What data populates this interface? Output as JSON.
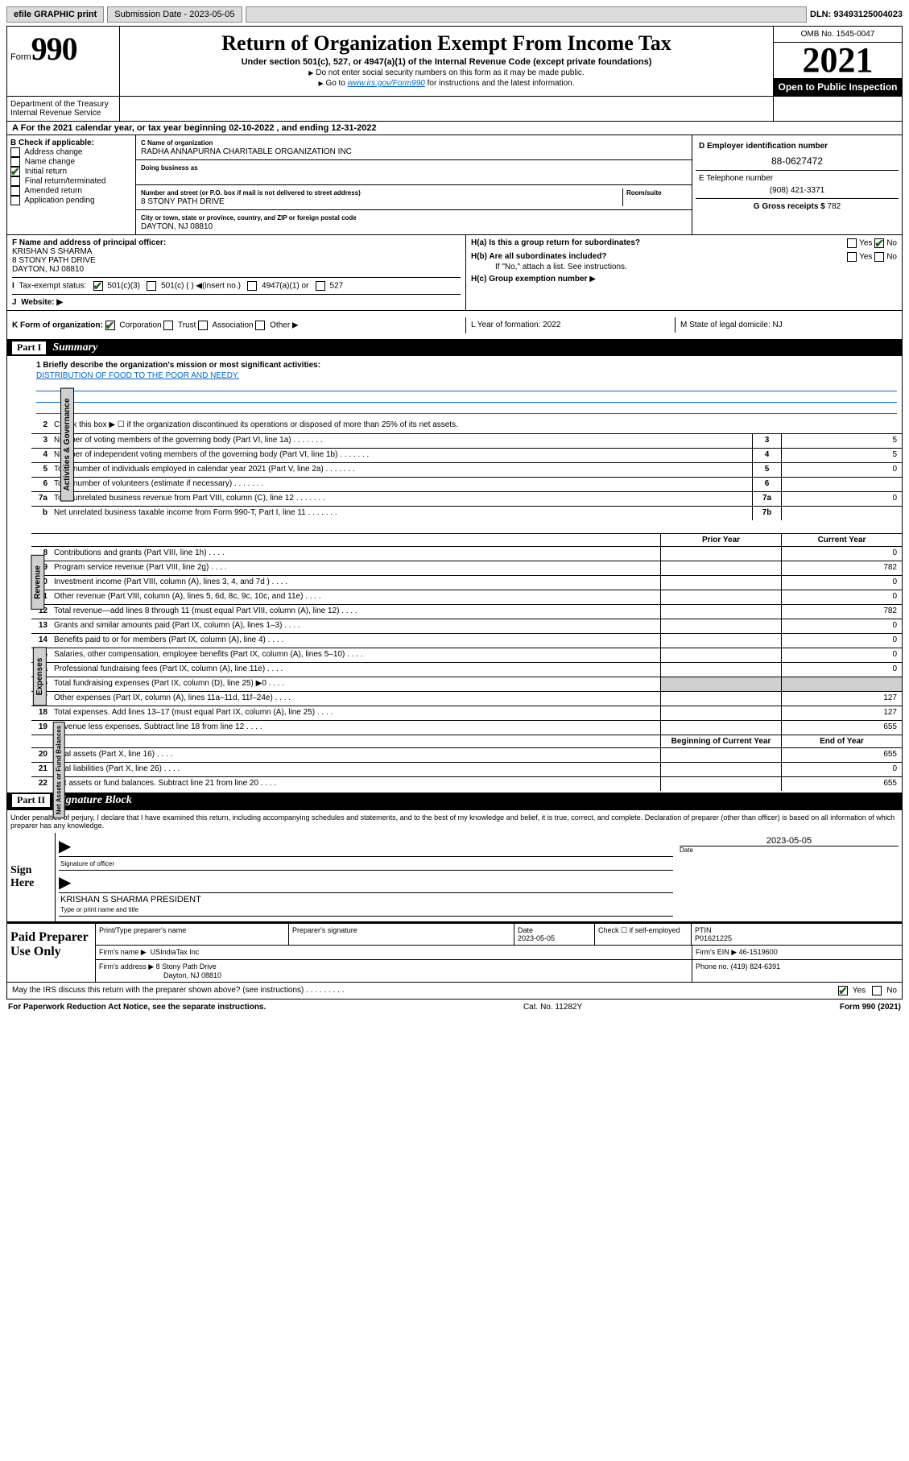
{
  "top_bar": {
    "efile_label": "efile GRAPHIC print",
    "submission_label": "Submission Date - 2023-05-05",
    "dln": "DLN: 93493125004023"
  },
  "header": {
    "form_prefix": "Form",
    "form_number": "990",
    "title": "Return of Organization Exempt From Income Tax",
    "subtitle": "Under section 501(c), 527, or 4947(a)(1) of the Internal Revenue Code (except private foundations)",
    "sub2a": "Do not enter social security numbers on this form as it may be made public.",
    "sub2b_prefix": "Go to",
    "sub2b_link": "www.irs.gov/Form990",
    "sub2b_suffix": "for instructions and the latest information.",
    "omb": "OMB No. 1545-0047",
    "year": "2021",
    "open_public": "Open to Public Inspection",
    "dept1": "Department of the Treasury",
    "dept2": "Internal Revenue Service"
  },
  "row_a": {
    "text": "For the 2021 calendar year, or tax year beginning 02-10-2022   , and ending 12-31-2022"
  },
  "box_b": {
    "label": "B Check if applicable:",
    "opts": [
      "Address change",
      "Name change",
      "Initial return",
      "Final return/terminated",
      "Amended return",
      "Application pending"
    ],
    "checked_idx": 2
  },
  "box_c": {
    "name_lbl": "C Name of organization",
    "name": "RADHA ANNAPURNA CHARITABLE ORGANIZATION INC",
    "dba_lbl": "Doing business as",
    "addr_lbl": "Number and street (or P.O. box if mail is not delivered to street address)",
    "room_lbl": "Room/suite",
    "addr": "8 STONY PATH DRIVE",
    "city_lbl": "City or town, state or province, country, and ZIP or foreign postal code",
    "city": "DAYTON, NJ  08810"
  },
  "box_d": {
    "ein_lbl": "D Employer identification number",
    "ein": "88-0627472",
    "phone_lbl": "E Telephone number",
    "phone": "(908) 421-3371",
    "gross_lbl": "G Gross receipts $",
    "gross": "782"
  },
  "box_f": {
    "lbl": "F  Name and address of principal officer:",
    "name": "KRISHAN S SHARMA",
    "addr1": "8 STONY PATH DRIVE",
    "addr2": "DAYTON, NJ  08810"
  },
  "box_h": {
    "ha": "H(a)  Is this a group return for subordinates?",
    "hb": "H(b)  Are all subordinates included?",
    "hc_note": "If \"No,\" attach a list. See instructions.",
    "hc": "H(c)  Group exemption number",
    "yes": "Yes",
    "no": "No"
  },
  "box_i": {
    "lbl": "Tax-exempt status:",
    "opts": [
      "501(c)(3)",
      "501(c) (   )",
      "(insert no.)",
      "4947(a)(1) or",
      "527"
    ]
  },
  "box_j": {
    "lbl": "Website:"
  },
  "box_k": {
    "lbl": "K Form of organization:",
    "opts": [
      "Corporation",
      "Trust",
      "Association",
      "Other"
    ]
  },
  "box_l": {
    "text": "L Year of formation: 2022"
  },
  "box_m": {
    "text": "M State of legal domicile: NJ"
  },
  "part1": {
    "bar_num": "Part I",
    "bar_title": "Summary",
    "mission_lbl": "1  Briefly describe the organization's mission or most significant activities:",
    "mission": "DISTRIBUTION OF FOOD TO THE POOR AND NEEDY.",
    "line2": "Check this box ▶ ☐  if the organization discontinued its operations or disposed of more than 25% of its net assets.",
    "rows_top": [
      {
        "n": "3",
        "t": "Number of voting members of the governing body (Part VI, line 1a)",
        "box": "3",
        "val": "5"
      },
      {
        "n": "4",
        "t": "Number of independent voting members of the governing body (Part VI, line 1b)",
        "box": "4",
        "val": "5"
      },
      {
        "n": "5",
        "t": "Total number of individuals employed in calendar year 2021 (Part V, line 2a)",
        "box": "5",
        "val": "0"
      },
      {
        "n": "6",
        "t": "Total number of volunteers (estimate if necessary)",
        "box": "6",
        "val": ""
      },
      {
        "n": "7a",
        "t": "Total unrelated business revenue from Part VIII, column (C), line 12",
        "box": "7a",
        "val": "0"
      },
      {
        "n": "b",
        "t": "Net unrelated business taxable income from Form 990-T, Part I, line 11",
        "box": "7b",
        "val": ""
      }
    ],
    "col_prior": "Prior Year",
    "col_current": "Current Year",
    "revenue_rows": [
      {
        "n": "8",
        "t": "Contributions and grants (Part VIII, line 1h)",
        "prior": "",
        "cur": "0"
      },
      {
        "n": "9",
        "t": "Program service revenue (Part VIII, line 2g)",
        "prior": "",
        "cur": "782"
      },
      {
        "n": "10",
        "t": "Investment income (Part VIII, column (A), lines 3, 4, and 7d )",
        "prior": "",
        "cur": "0"
      },
      {
        "n": "11",
        "t": "Other revenue (Part VIII, column (A), lines 5, 6d, 8c, 9c, 10c, and 11e)",
        "prior": "",
        "cur": "0"
      },
      {
        "n": "12",
        "t": "Total revenue—add lines 8 through 11 (must equal Part VIII, column (A), line 12)",
        "prior": "",
        "cur": "782"
      }
    ],
    "expense_rows": [
      {
        "n": "13",
        "t": "Grants and similar amounts paid (Part IX, column (A), lines 1–3)",
        "prior": "",
        "cur": "0"
      },
      {
        "n": "14",
        "t": "Benefits paid to or for members (Part IX, column (A), line 4)",
        "prior": "",
        "cur": "0"
      },
      {
        "n": "15",
        "t": "Salaries, other compensation, employee benefits (Part IX, column (A), lines 5–10)",
        "prior": "",
        "cur": "0"
      },
      {
        "n": "16a",
        "t": "Professional fundraising fees (Part IX, column (A), line 11e)",
        "prior": "",
        "cur": "0"
      },
      {
        "n": "b",
        "t": "Total fundraising expenses (Part IX, column (D), line 25) ▶0",
        "prior": "—",
        "cur": "—"
      },
      {
        "n": "17",
        "t": "Other expenses (Part IX, column (A), lines 11a–11d, 11f–24e)",
        "prior": "",
        "cur": "127"
      },
      {
        "n": "18",
        "t": "Total expenses. Add lines 13–17 (must equal Part IX, column (A), line 25)",
        "prior": "",
        "cur": "127"
      },
      {
        "n": "19",
        "t": "Revenue less expenses. Subtract line 18 from line 12",
        "prior": "",
        "cur": "655"
      }
    ],
    "col_begin": "Beginning of Current Year",
    "col_end": "End of Year",
    "asset_rows": [
      {
        "n": "20",
        "t": "Total assets (Part X, line 16)",
        "prior": "",
        "cur": "655"
      },
      {
        "n": "21",
        "t": "Total liabilities (Part X, line 26)",
        "prior": "",
        "cur": "0"
      },
      {
        "n": "22",
        "t": "Net assets or fund balances. Subtract line 21 from line 20",
        "prior": "",
        "cur": "655"
      }
    ],
    "tabs": {
      "ag": "Activities & Governance",
      "rev": "Revenue",
      "exp": "Expenses",
      "na": "Net Assets or Fund Balances"
    }
  },
  "part2": {
    "bar_num": "Part II",
    "bar_title": "Signature Block",
    "decl": "Under penalties of perjury, I declare that I have examined this return, including accompanying schedules and statements, and to the best of my knowledge and belief, it is true, correct, and complete. Declaration of preparer (other than officer) is based on all information of which preparer has any knowledge.",
    "sign_here": "Sign Here",
    "sig_officer": "Signature of officer",
    "sig_date": "Date",
    "date_val": "2023-05-05",
    "officer_name": "KRISHAN S SHARMA  PRESIDENT",
    "type_name": "Type or print name and title"
  },
  "paid": {
    "label": "Paid Preparer Use Only",
    "h_prep": "Print/Type preparer's name",
    "h_sig": "Preparer's signature",
    "h_date": "Date",
    "date": "2023-05-05",
    "h_check": "Check ☐ if self-employed",
    "h_ptin": "PTIN",
    "ptin": "P01621225",
    "firm_name_lbl": "Firm's name ▶",
    "firm_name": "USIndiaTax Inc",
    "firm_ein_lbl": "Firm's EIN ▶",
    "firm_ein": "46-1519600",
    "firm_addr_lbl": "Firm's address ▶",
    "firm_addr1": "8 Stony Path Drive",
    "firm_addr2": "Dayton, NJ  08810",
    "phone_lbl": "Phone no.",
    "phone": "(419) 824-6391"
  },
  "discuss": {
    "text": "May the IRS discuss this return with the preparer shown above? (see instructions)",
    "yes": "Yes",
    "no": "No"
  },
  "footer": {
    "left": "For Paperwork Reduction Act Notice, see the separate instructions.",
    "mid": "Cat. No. 11282Y",
    "right": "Form 990 (2021)"
  }
}
